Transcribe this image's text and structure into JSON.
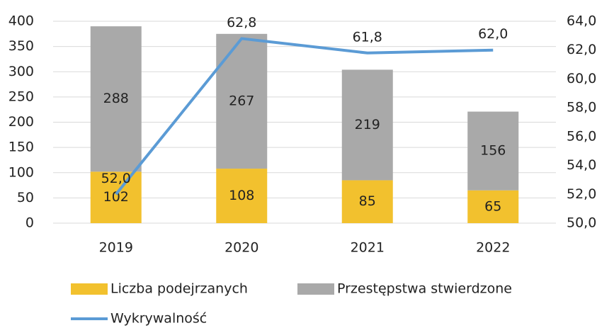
{
  "chart_data": {
    "type": "bar_line",
    "categories": [
      "2019",
      "2020",
      "2021",
      "2022"
    ],
    "series": [
      {
        "name": "Liczba podejrzanych",
        "color": "#f2c12e",
        "values": [
          102,
          108,
          85,
          65
        ]
      },
      {
        "name": "Przestępstwa stwierdzone",
        "color": "#a9a9a9",
        "values": [
          288,
          267,
          219,
          156
        ]
      },
      {
        "name": "Wykrywalność",
        "color": "#5b9bd5",
        "axis": "y2",
        "values": [
          52,
          62.8,
          61.8,
          62
        ],
        "value_labels": [
          "52,0",
          "62,8",
          "61,8",
          "62,0"
        ]
      }
    ],
    "ylim": [
      0,
      400
    ],
    "yticks": [
      0,
      50,
      100,
      150,
      200,
      250,
      300,
      350,
      400
    ],
    "y2lim": [
      50,
      64
    ],
    "y2ticks": [
      {
        "value": 50,
        "label": "50,0"
      },
      {
        "value": 52,
        "label": "52,0"
      },
      {
        "value": 54,
        "label": "54,0"
      },
      {
        "value": 56,
        "label": "56,0"
      },
      {
        "value": 58,
        "label": "58,0"
      },
      {
        "value": 60,
        "label": "60,0"
      },
      {
        "value": 62,
        "label": "62,0"
      },
      {
        "value": 64,
        "label": "64,0"
      }
    ],
    "grid": true
  }
}
